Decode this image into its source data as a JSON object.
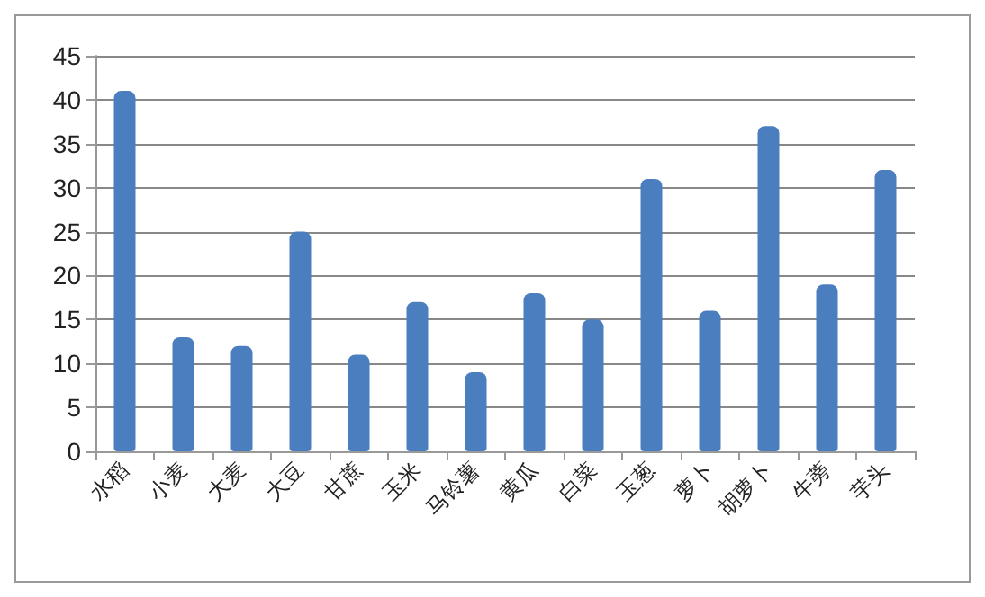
{
  "chart_data": {
    "type": "bar",
    "categories": [
      "水稻",
      "小麦",
      "大麦",
      "大豆",
      "甘蔗",
      "玉米",
      "马铃薯",
      "黄瓜",
      "白菜",
      "玉葱",
      "萝卜",
      "胡萝卜",
      "牛蒡",
      "芋头"
    ],
    "values": [
      41,
      13,
      12,
      25,
      11,
      17,
      9,
      18,
      15,
      31,
      16,
      37,
      19,
      32
    ],
    "color": "#4a7ebf",
    "ylim": [
      0,
      45
    ],
    "yticks": [
      0,
      5,
      10,
      15,
      20,
      25,
      30,
      35,
      40,
      45
    ],
    "grid": "y"
  }
}
